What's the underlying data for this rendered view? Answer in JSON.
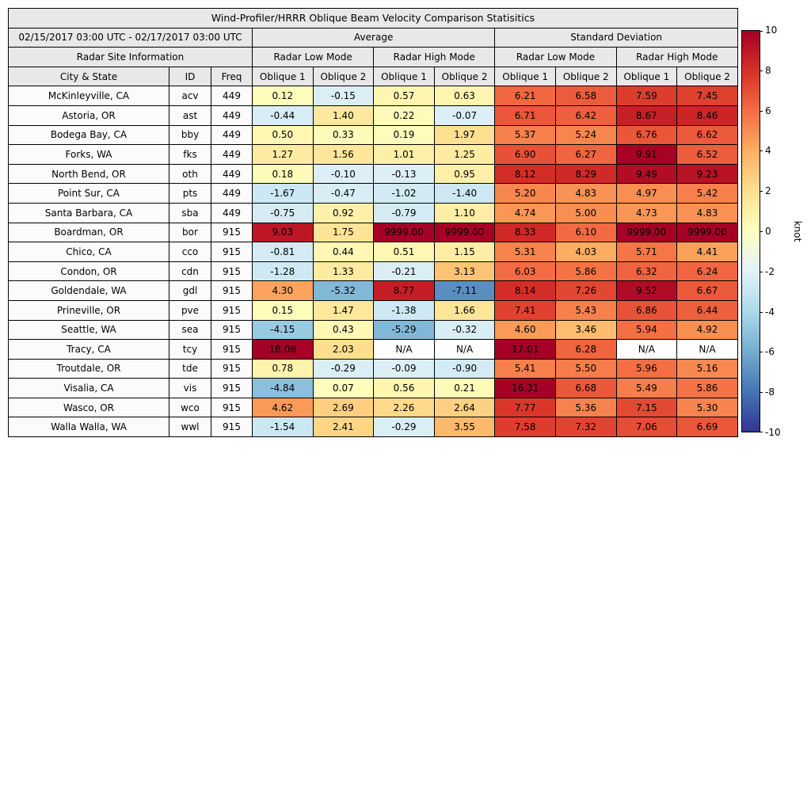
{
  "chart_data": {
    "type": "heatmap",
    "title": "Wind-Profiler/HRRR Oblique Beam Velocity Comparison Statisitics",
    "header": {
      "date_range": "02/15/2017 03:00 UTC - 02/17/2017 03:00 UTC",
      "average_group": "Average",
      "stddev_group": "Standard Deviation",
      "site_info_group": "Radar Site Information",
      "low_mode": "Radar Low Mode",
      "high_mode": "Radar High Mode",
      "city_col": "City & State",
      "id_col": "ID",
      "freq_col": "Freq",
      "oblique1": "Oblique 1",
      "oblique2": "Oblique 2"
    },
    "rows": [
      {
        "city": "McKinleyville, CA",
        "id": "acv",
        "freq": "449",
        "values": [
          "0.12",
          "-0.15",
          "0.57",
          "0.63",
          "6.21",
          "6.58",
          "7.59",
          "7.45"
        ]
      },
      {
        "city": "Astoria, OR",
        "id": "ast",
        "freq": "449",
        "values": [
          "-0.44",
          "1.40",
          "0.22",
          "-0.07",
          "6.71",
          "6.42",
          "8.67",
          "8.46"
        ]
      },
      {
        "city": "Bodega Bay, CA",
        "id": "bby",
        "freq": "449",
        "values": [
          "0.50",
          "0.33",
          "0.19",
          "1.97",
          "5.37",
          "5.24",
          "6.76",
          "6.62"
        ]
      },
      {
        "city": "Forks, WA",
        "id": "fks",
        "freq": "449",
        "values": [
          "1.27",
          "1.56",
          "1.01",
          "1.25",
          "6.90",
          "6.27",
          "9.91",
          "6.52"
        ]
      },
      {
        "city": "North Bend, OR",
        "id": "oth",
        "freq": "449",
        "values": [
          "0.18",
          "-0.10",
          "-0.13",
          "0.95",
          "8.12",
          "8.29",
          "9.49",
          "9.23"
        ]
      },
      {
        "city": "Point Sur, CA",
        "id": "pts",
        "freq": "449",
        "values": [
          "-1.67",
          "-0.47",
          "-1.02",
          "-1.40",
          "5.20",
          "4.83",
          "4.97",
          "5.42"
        ]
      },
      {
        "city": "Santa Barbara, CA",
        "id": "sba",
        "freq": "449",
        "values": [
          "-0.75",
          "0.92",
          "-0.79",
          "1.10",
          "4.74",
          "5.00",
          "4.73",
          "4.83"
        ]
      },
      {
        "city": "Boardman, OR",
        "id": "bor",
        "freq": "915",
        "values": [
          "9.03",
          "1.75",
          "9999.00",
          "9999.00",
          "8.33",
          "6.10",
          "9999.00",
          "9999.00"
        ]
      },
      {
        "city": "Chico, CA",
        "id": "cco",
        "freq": "915",
        "values": [
          "-0.81",
          "0.44",
          "0.51",
          "1.15",
          "5.31",
          "4.03",
          "5.71",
          "4.41"
        ]
      },
      {
        "city": "Condon, OR",
        "id": "cdn",
        "freq": "915",
        "values": [
          "-1.28",
          "1.33",
          "-0.21",
          "3.13",
          "6.03",
          "5.86",
          "6.32",
          "6.24"
        ]
      },
      {
        "city": "Goldendale, WA",
        "id": "gdl",
        "freq": "915",
        "values": [
          "4.30",
          "-5.32",
          "8.77",
          "-7.11",
          "8.14",
          "7.26",
          "9.52",
          "6.67"
        ]
      },
      {
        "city": "Prineville, OR",
        "id": "pve",
        "freq": "915",
        "values": [
          "0.15",
          "1.47",
          "-1.38",
          "1.66",
          "7.41",
          "5.43",
          "6.86",
          "6.44"
        ]
      },
      {
        "city": "Seattle, WA",
        "id": "sea",
        "freq": "915",
        "values": [
          "-4.15",
          "0.43",
          "-5.29",
          "-0.32",
          "4.60",
          "3.46",
          "5.94",
          "4.92"
        ]
      },
      {
        "city": "Tracy, CA",
        "id": "tcy",
        "freq": "915",
        "values": [
          "18.08",
          "2.03",
          "N/A",
          "N/A",
          "17.01",
          "6.28",
          "N/A",
          "N/A"
        ]
      },
      {
        "city": "Troutdale, OR",
        "id": "tde",
        "freq": "915",
        "values": [
          "0.78",
          "-0.29",
          "-0.09",
          "-0.90",
          "5.41",
          "5.50",
          "5.96",
          "5.16"
        ]
      },
      {
        "city": "Visalia, CA",
        "id": "vis",
        "freq": "915",
        "values": [
          "-4.84",
          "0.07",
          "0.56",
          "0.21",
          "16.31",
          "6.68",
          "5.49",
          "5.86"
        ]
      },
      {
        "city": "Wasco, OR",
        "id": "wco",
        "freq": "915",
        "values": [
          "4.62",
          "2.69",
          "2.26",
          "2.64",
          "7.77",
          "5.36",
          "7.15",
          "5.30"
        ]
      },
      {
        "city": "Walla Walla, WA",
        "id": "wwl",
        "freq": "915",
        "values": [
          "-1.54",
          "2.41",
          "-0.29",
          "3.55",
          "7.58",
          "7.32",
          "7.06",
          "6.69"
        ]
      }
    ],
    "colorbar": {
      "label": "knot",
      "min": -10,
      "max": 10,
      "ticks": [
        10,
        8,
        6,
        4,
        2,
        0,
        -2,
        -4,
        -6,
        -8,
        -10
      ],
      "gradient": [
        {
          "value": -10,
          "color": "#313695"
        },
        {
          "value": -8,
          "color": "#4575b4"
        },
        {
          "value": -6,
          "color": "#74add1"
        },
        {
          "value": -4,
          "color": "#abd9e9"
        },
        {
          "value": -2,
          "color": "#e0f3f8"
        },
        {
          "value": 0,
          "color": "#ffffbf"
        },
        {
          "value": 2,
          "color": "#fee090"
        },
        {
          "value": 4,
          "color": "#fdae61"
        },
        {
          "value": 6,
          "color": "#f46d43"
        },
        {
          "value": 8,
          "color": "#d73027"
        },
        {
          "value": 10,
          "color": "#a50026"
        }
      ]
    },
    "cell_colormap": {
      "na_color": "#ffffff",
      "positive": [
        [
          0,
          "#ffffbf"
        ],
        [
          2,
          "#fee090"
        ],
        [
          4,
          "#fdae61"
        ],
        [
          6,
          "#f46d43"
        ],
        [
          8,
          "#d73027"
        ],
        [
          10,
          "#a50026"
        ]
      ],
      "negative": [
        [
          0,
          "#ddeff6"
        ],
        [
          -2,
          "#c6e5f1"
        ],
        [
          -4,
          "#9bcce3"
        ],
        [
          -6,
          "#74add1"
        ],
        [
          -8,
          "#4575b4"
        ],
        [
          -10,
          "#313695"
        ]
      ]
    },
    "style_colors": {
      "header_bg": "#e8e8e8",
      "meta_bg": "#fbfbfb",
      "border": "#000000"
    }
  }
}
